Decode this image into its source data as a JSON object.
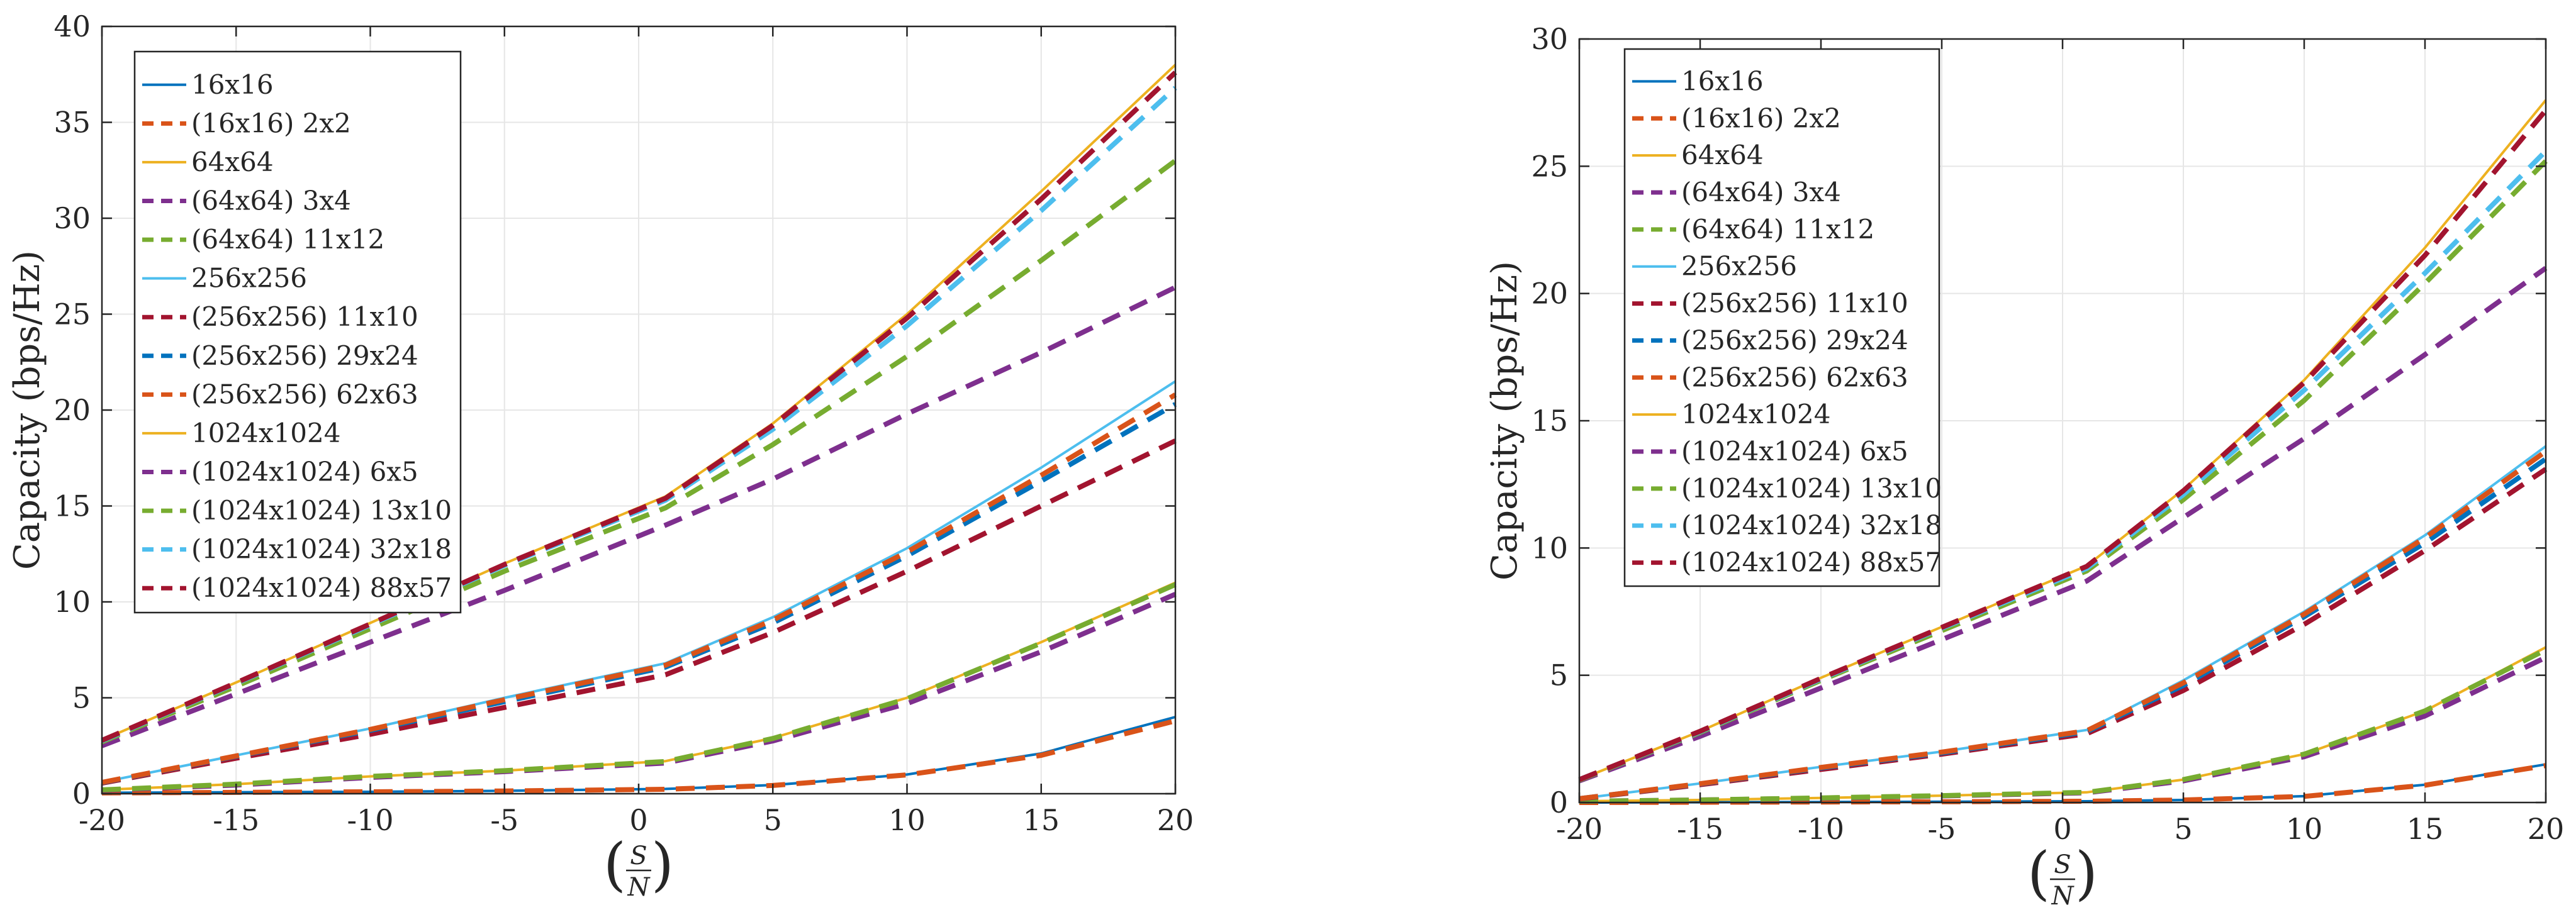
{
  "chart_data": [
    {
      "type": "line",
      "title": "",
      "xlabel": "(S/N)",
      "xlabel_num": "S",
      "xlabel_den": "N",
      "ylabel": "Capacity (bps/Hz)",
      "xlim": [
        -20,
        20
      ],
      "ylim": [
        0,
        40
      ],
      "xticks": [
        -20,
        -15,
        -10,
        -5,
        0,
        5,
        10,
        15,
        20
      ],
      "yticks": [
        0,
        5,
        10,
        15,
        20,
        25,
        30,
        35,
        40
      ],
      "grid": true,
      "legend_position": "top-left",
      "x": [
        -20,
        -15,
        -10,
        -5,
        1,
        5,
        10,
        15,
        20
      ],
      "series": [
        {
          "name": "16x16",
          "style": "solid",
          "color": "#0072BD",
          "values": [
            0.05,
            0.08,
            0.1,
            0.15,
            0.25,
            0.45,
            1.0,
            2.1,
            4.0
          ]
        },
        {
          "name": "(16x16) 2x2",
          "style": "dashed",
          "color": "#D95319",
          "values": [
            0.04,
            0.07,
            0.1,
            0.14,
            0.23,
            0.43,
            0.98,
            2.0,
            3.8
          ]
        },
        {
          "name": "64x64",
          "style": "solid",
          "color": "#EDB120",
          "values": [
            0.2,
            0.5,
            0.9,
            1.2,
            1.7,
            2.9,
            5.0,
            7.9,
            11.0
          ]
        },
        {
          "name": "(64x64) 3x4",
          "style": "dashed",
          "color": "#7E2F8E",
          "values": [
            0.18,
            0.45,
            0.85,
            1.15,
            1.6,
            2.75,
            4.7,
            7.4,
            10.4
          ]
        },
        {
          "name": "(64x64) 11x12",
          "style": "dashed",
          "color": "#77AC30",
          "values": [
            0.2,
            0.5,
            0.9,
            1.2,
            1.68,
            2.88,
            4.95,
            7.85,
            10.9
          ]
        },
        {
          "name": "256x256",
          "style": "solid",
          "color": "#4DBEEE",
          "values": [
            0.6,
            2.0,
            3.4,
            5.0,
            6.8,
            9.2,
            12.8,
            17.0,
            21.5
          ]
        },
        {
          "name": "(256x256) 11x10",
          "style": "dashed",
          "color": "#A2142F",
          "values": [
            0.55,
            1.85,
            3.1,
            4.5,
            6.2,
            8.4,
            11.6,
            15.0,
            18.4
          ]
        },
        {
          "name": "(256x256) 29x24",
          "style": "dashed",
          "color": "#0072BD",
          "values": [
            0.58,
            1.95,
            3.3,
            4.8,
            6.6,
            8.9,
            12.4,
            16.3,
            20.3
          ]
        },
        {
          "name": "(256x256) 62x63",
          "style": "dashed",
          "color": "#D95319",
          "values": [
            0.59,
            1.97,
            3.35,
            4.9,
            6.7,
            9.05,
            12.6,
            16.6,
            20.8
          ]
        },
        {
          "name": "1024x1024",
          "style": "solid",
          "color": "#EDB120",
          "values": [
            2.8,
            5.8,
            8.9,
            12.0,
            15.5,
            19.3,
            25.0,
            31.4,
            38.0
          ]
        },
        {
          "name": "(1024x1024) 6x5",
          "style": "dashed",
          "color": "#7E2F8E",
          "values": [
            2.5,
            5.2,
            7.9,
            10.6,
            14.0,
            16.4,
            19.8,
            23.0,
            26.4
          ]
        },
        {
          "name": "(1024x1024) 13x10",
          "style": "dashed",
          "color": "#77AC30",
          "values": [
            2.7,
            5.6,
            8.6,
            11.6,
            14.9,
            18.2,
            22.8,
            27.8,
            33.0
          ]
        },
        {
          "name": "(1024x1024) 32x18",
          "style": "dashed",
          "color": "#4DBEEE",
          "values": [
            2.75,
            5.75,
            8.8,
            11.9,
            15.3,
            19.0,
            24.4,
            30.4,
            36.8
          ]
        },
        {
          "name": "(1024x1024) 88x57",
          "style": "dashed",
          "color": "#A2142F",
          "values": [
            2.78,
            5.78,
            8.85,
            11.95,
            15.4,
            19.2,
            24.8,
            31.0,
            37.6
          ]
        }
      ]
    },
    {
      "type": "line",
      "title": "",
      "xlabel": "(S/N)",
      "xlabel_num": "S",
      "xlabel_den": "N",
      "ylabel": "Capacity (bps/Hz)",
      "xlim": [
        -20,
        20
      ],
      "ylim": [
        0,
        30
      ],
      "xticks": [
        -20,
        -15,
        -10,
        -5,
        0,
        5,
        10,
        15,
        20
      ],
      "yticks": [
        0,
        5,
        10,
        15,
        20,
        25,
        30
      ],
      "grid": true,
      "legend_position": "top-left",
      "x": [
        -20,
        -15,
        -10,
        -5,
        1,
        5,
        10,
        15,
        20
      ],
      "series": [
        {
          "name": "16x16",
          "style": "solid",
          "color": "#0072BD",
          "values": [
            0.0,
            0.01,
            0.02,
            0.03,
            0.05,
            0.1,
            0.25,
            0.7,
            1.5
          ]
        },
        {
          "name": "(16x16) 2x2",
          "style": "dashed",
          "color": "#D95319",
          "values": [
            0.0,
            0.01,
            0.02,
            0.03,
            0.05,
            0.1,
            0.24,
            0.68,
            1.45
          ]
        },
        {
          "name": "64x64",
          "style": "solid",
          "color": "#EDB120",
          "values": [
            0.05,
            0.1,
            0.18,
            0.27,
            0.4,
            0.9,
            1.9,
            3.6,
            6.1
          ]
        },
        {
          "name": "(64x64) 3x4",
          "style": "dashed",
          "color": "#7E2F8E",
          "values": [
            0.05,
            0.1,
            0.17,
            0.26,
            0.38,
            0.85,
            1.8,
            3.4,
            5.7
          ]
        },
        {
          "name": "(64x64) 11x12",
          "style": "dashed",
          "color": "#77AC30",
          "values": [
            0.05,
            0.1,
            0.18,
            0.27,
            0.4,
            0.9,
            1.9,
            3.6,
            6.0
          ]
        },
        {
          "name": "256x256",
          "style": "solid",
          "color": "#4DBEEE",
          "values": [
            0.15,
            0.75,
            1.4,
            2.0,
            2.85,
            4.8,
            7.5,
            10.5,
            14.0
          ]
        },
        {
          "name": "(256x256) 11x10",
          "style": "dashed",
          "color": "#A2142F",
          "values": [
            0.14,
            0.7,
            1.3,
            1.9,
            2.7,
            4.4,
            7.0,
            9.9,
            13.1
          ]
        },
        {
          "name": "(256x256) 29x24",
          "style": "dashed",
          "color": "#0072BD",
          "values": [
            0.15,
            0.73,
            1.36,
            1.95,
            2.78,
            4.6,
            7.3,
            10.2,
            13.5
          ]
        },
        {
          "name": "(256x256) 62x63",
          "style": "dashed",
          "color": "#D95319",
          "values": [
            0.15,
            0.74,
            1.38,
            1.98,
            2.82,
            4.7,
            7.4,
            10.4,
            13.8
          ]
        },
        {
          "name": "1024x1024",
          "style": "solid",
          "color": "#EDB120",
          "values": [
            0.9,
            2.8,
            4.9,
            6.9,
            9.3,
            12.3,
            16.6,
            21.8,
            27.6
          ]
        },
        {
          "name": "(1024x1024) 6x5",
          "style": "dashed",
          "color": "#7E2F8E",
          "values": [
            0.85,
            2.6,
            4.5,
            6.4,
            8.7,
            11.2,
            14.3,
            17.6,
            21.0
          ]
        },
        {
          "name": "(1024x1024) 13x10",
          "style": "dashed",
          "color": "#77AC30",
          "values": [
            0.88,
            2.75,
            4.8,
            6.75,
            9.1,
            11.9,
            15.8,
            20.4,
            25.2
          ]
        },
        {
          "name": "(1024x1024) 32x18",
          "style": "dashed",
          "color": "#4DBEEE",
          "values": [
            0.9,
            2.78,
            4.85,
            6.85,
            9.2,
            12.1,
            16.2,
            20.8,
            25.6
          ]
        },
        {
          "name": "(1024x1024) 88x57",
          "style": "dashed",
          "color": "#A2142F",
          "values": [
            0.9,
            2.8,
            4.88,
            6.88,
            9.28,
            12.25,
            16.5,
            21.5,
            27.2
          ]
        }
      ]
    }
  ]
}
